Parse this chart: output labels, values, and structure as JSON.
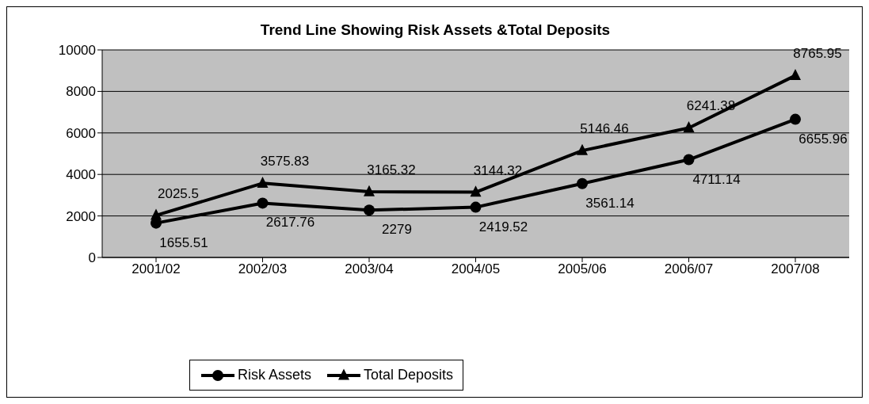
{
  "chart_data": {
    "type": "line",
    "title": "Trend Line Showing Risk Assets &Total Deposits",
    "categories": [
      "2001/02",
      "2002/03",
      "2003/04",
      "2004/05",
      "2005/06",
      "2006/07",
      "2007/08"
    ],
    "series": [
      {
        "name": "Risk Assets",
        "color": "#000000",
        "marker": "circle",
        "values": [
          1655.51,
          2617.76,
          2279,
          2419.52,
          3561.14,
          4711.14,
          6655.96
        ]
      },
      {
        "name": "Total Deposits",
        "color": "#000000",
        "marker": "triangle",
        "values": [
          2025.5,
          3575.83,
          3165.32,
          3144.32,
          5146.46,
          6241.38,
          8765.95
        ]
      }
    ],
    "ylim": [
      0,
      10000
    ],
    "yticks": [
      0,
      2000,
      4000,
      6000,
      8000,
      10000
    ],
    "grid": "y",
    "legend": "bottom left",
    "data_labels": true,
    "line_style": "solid"
  }
}
